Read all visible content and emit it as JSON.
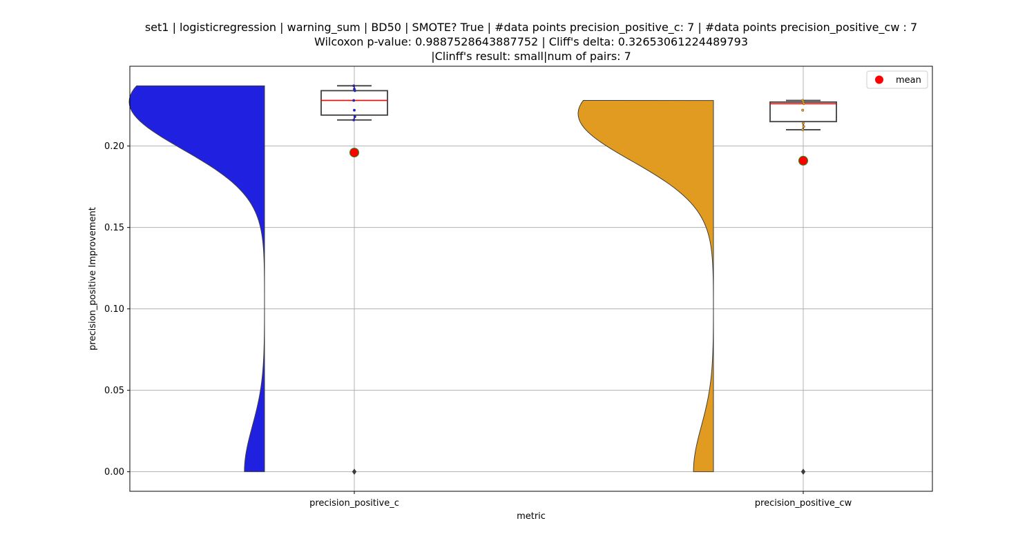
{
  "title_lines": [
    "set1 | logisticregression | warning_sum | BD50 | SMOTE? True | #data points precision_positive_c: 7 | #data points precision_positive_cw : 7",
    "Wilcoxon p-value: 0.9887528643887752 | Cliff's delta: 0.32653061224489793",
    "|Clinff's result: small|num of pairs: 7"
  ],
  "chart_data": {
    "type": "violin+box",
    "xlabel": "metric",
    "ylabel": "precision_positive Improvement",
    "ylim": [
      -0.012,
      0.249
    ],
    "yticks": [
      0.0,
      0.05,
      0.1,
      0.15,
      0.2
    ],
    "ytick_labels": [
      "0.00",
      "0.05",
      "0.10",
      "0.15",
      "0.20"
    ],
    "grid": true,
    "legend": {
      "position": "top-right",
      "entries": [
        {
          "label": "mean",
          "color": "#ff0000"
        }
      ]
    },
    "series": [
      {
        "category": "precision_positive_c",
        "violin_color": "#2020e0",
        "violin_range": [
          0.0,
          0.237
        ],
        "box": {
          "min": 0.216,
          "q1": 0.219,
          "median": 0.228,
          "q3": 0.234,
          "max": 0.237
        },
        "outliers": [
          0.0
        ],
        "points": [
          0.237,
          0.235,
          0.234,
          0.228,
          0.222,
          0.218,
          0.216
        ],
        "point_color": "#2020e0",
        "mean": 0.196
      },
      {
        "category": "precision_positive_cw",
        "violin_color": "#e09b20",
        "violin_range": [
          0.0,
          0.228
        ],
        "box": {
          "min": 0.21,
          "q1": 0.215,
          "median": 0.226,
          "q3": 0.227,
          "max": 0.228
        },
        "outliers": [
          0.0
        ],
        "points": [
          0.228,
          0.227,
          0.226,
          0.222,
          0.214,
          0.212,
          0.21
        ],
        "point_color": "#e09b20",
        "mean": 0.191
      }
    ]
  }
}
